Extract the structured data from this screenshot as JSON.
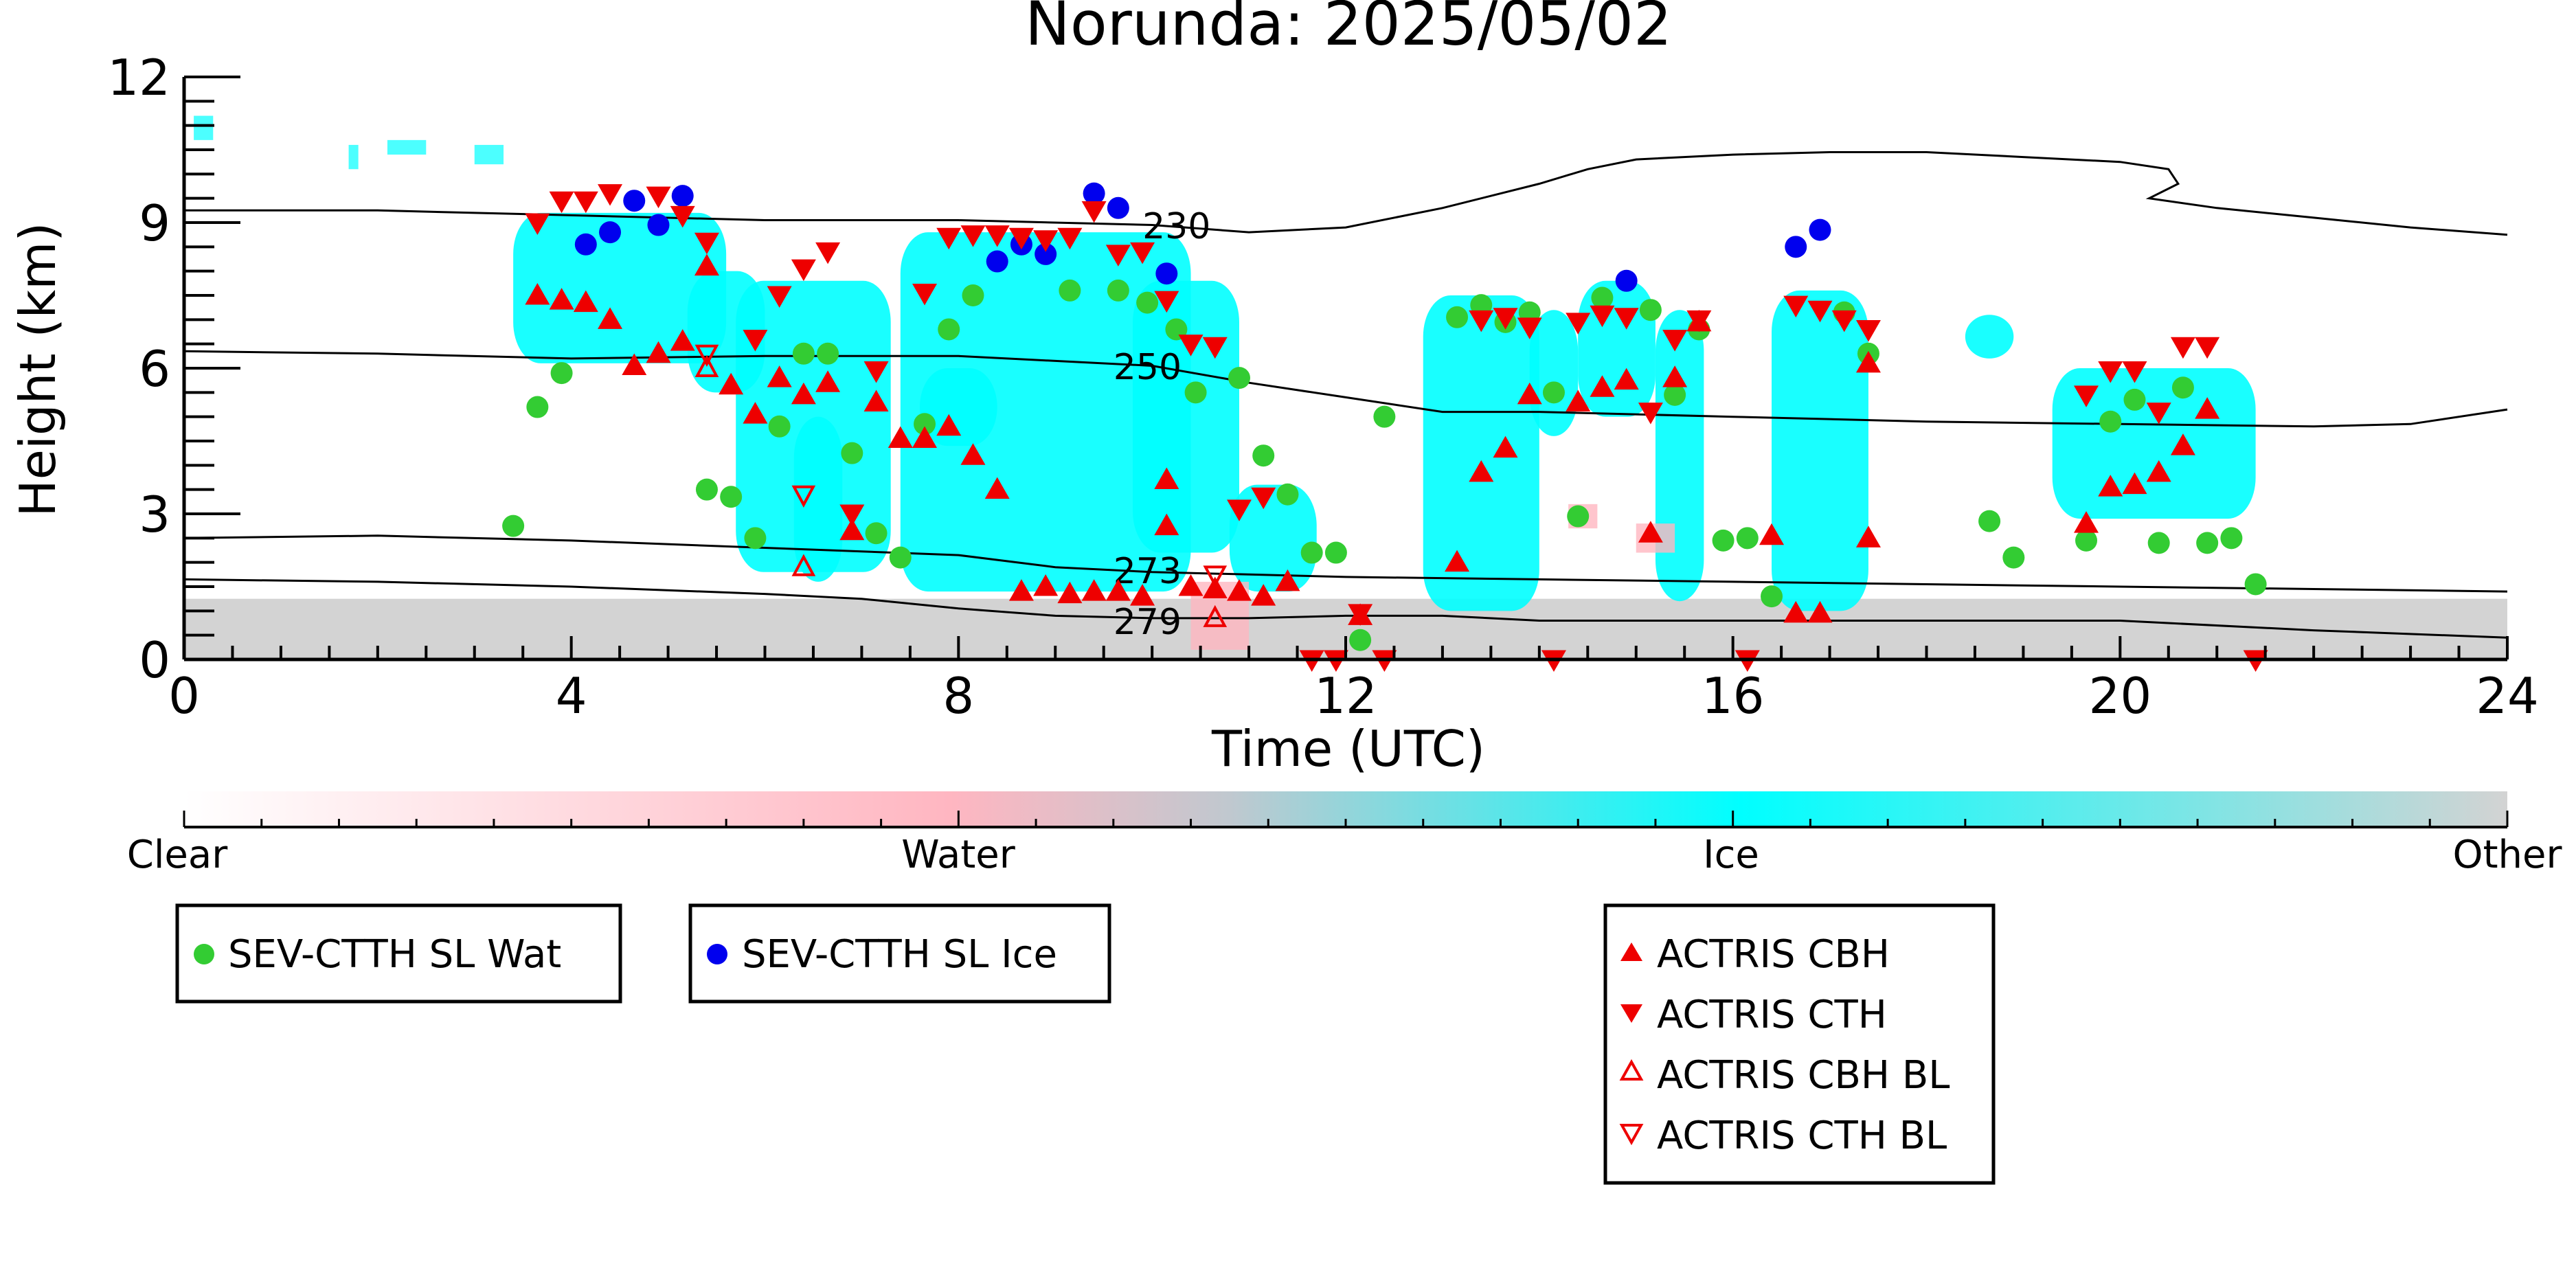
{
  "chart_data": {
    "type": "scatter",
    "title": "Norunda: 2025/05/02",
    "xlabel": "Time (UTC)",
    "ylabel": "Height (km)",
    "xlim": [
      0,
      24
    ],
    "ylim": [
      0,
      12
    ],
    "x_ticks": [
      "0",
      "4",
      "8",
      "12",
      "16",
      "20",
      "24"
    ],
    "y_ticks": [
      "0",
      "3",
      "6",
      "9",
      "12"
    ],
    "grid": false,
    "colorbar": {
      "labels": [
        "Clear",
        "Water",
        "Ice",
        "Other"
      ],
      "colors": [
        "#ffffff",
        "#ffb6c1",
        "#00ffff",
        "#d3d3d3"
      ]
    },
    "legend": {
      "placement": "below",
      "entries": [
        {
          "label": "SEV-CTTH SL Wat",
          "color": "#33cc33",
          "marker": "circle"
        },
        {
          "label": "SEV-CTTH SL Ice",
          "color": "#0000ee",
          "marker": "circle"
        },
        {
          "label": "ACTRIS CBH",
          "color": "#ee0000",
          "marker": "triangle-up"
        },
        {
          "label": "ACTRIS CTH",
          "color": "#ee0000",
          "marker": "triangle-down"
        },
        {
          "label": "ACTRIS CBH BL",
          "color": "#ee0000",
          "marker": "triangle-up-open"
        },
        {
          "label": "ACTRIS CTH BL",
          "color": "#ee0000",
          "marker": "triangle-down-open"
        }
      ]
    },
    "contours": [
      {
        "label": "230",
        "label_x": 9.9,
        "label_y": 8.9,
        "points": [
          [
            0,
            9.25
          ],
          [
            2,
            9.25
          ],
          [
            4,
            9.15
          ],
          [
            6,
            9.05
          ],
          [
            8,
            9.05
          ],
          [
            10,
            8.95
          ],
          [
            11,
            8.8
          ],
          [
            12,
            8.9
          ],
          [
            13,
            9.3
          ],
          [
            14,
            9.8
          ],
          [
            14.5,
            10.1
          ],
          [
            15,
            10.3
          ],
          [
            16,
            10.4
          ],
          [
            17,
            10.45
          ],
          [
            18,
            10.45
          ],
          [
            19,
            10.35
          ],
          [
            20,
            10.25
          ],
          [
            20.5,
            10.1
          ],
          [
            20.6,
            9.8
          ],
          [
            20.3,
            9.5
          ],
          [
            21,
            9.3
          ],
          [
            22,
            9.1
          ],
          [
            23,
            8.9
          ],
          [
            24,
            8.75
          ]
        ]
      },
      {
        "label": "250",
        "label_x": 9.6,
        "label_y": 6.0,
        "points": [
          [
            0,
            6.35
          ],
          [
            2,
            6.3
          ],
          [
            4,
            6.2
          ],
          [
            6,
            6.25
          ],
          [
            8,
            6.25
          ],
          [
            9,
            6.15
          ],
          [
            10,
            6.05
          ],
          [
            11,
            5.7
          ],
          [
            12,
            5.4
          ],
          [
            13,
            5.1
          ],
          [
            14,
            5.1
          ],
          [
            16,
            5.0
          ],
          [
            18,
            4.9
          ],
          [
            20,
            4.85
          ],
          [
            22,
            4.8
          ],
          [
            23,
            4.85
          ],
          [
            24,
            5.15
          ]
        ]
      },
      {
        "label": "273",
        "label_x": 9.6,
        "label_y": 1.8,
        "points": [
          [
            0,
            2.5
          ],
          [
            2,
            2.55
          ],
          [
            4,
            2.45
          ],
          [
            6,
            2.3
          ],
          [
            8,
            2.15
          ],
          [
            9,
            1.9
          ],
          [
            10,
            1.8
          ],
          [
            11,
            1.75
          ],
          [
            12,
            1.7
          ],
          [
            14,
            1.65
          ],
          [
            16,
            1.6
          ],
          [
            18,
            1.55
          ],
          [
            20,
            1.5
          ],
          [
            22,
            1.45
          ],
          [
            24,
            1.4
          ]
        ]
      },
      {
        "label": "279",
        "label_x": 9.6,
        "label_y": 0.75,
        "points": [
          [
            0,
            1.65
          ],
          [
            2,
            1.6
          ],
          [
            4,
            1.5
          ],
          [
            6,
            1.35
          ],
          [
            7,
            1.25
          ],
          [
            8,
            1.05
          ],
          [
            9,
            0.9
          ],
          [
            10,
            0.85
          ],
          [
            11,
            0.85
          ],
          [
            12,
            0.9
          ],
          [
            13,
            0.9
          ],
          [
            14,
            0.8
          ],
          [
            16,
            0.8
          ],
          [
            18,
            0.8
          ],
          [
            20,
            0.8
          ],
          [
            22,
            0.6
          ],
          [
            24,
            0.45
          ]
        ]
      }
    ],
    "series": [
      {
        "name": "SEV-CTTH SL Wat",
        "marker": "circle",
        "color": "#33cc33",
        "points": [
          [
            3.4,
            2.75
          ],
          [
            3.65,
            5.2
          ],
          [
            3.9,
            5.9
          ],
          [
            5.4,
            3.5
          ],
          [
            5.65,
            3.35
          ],
          [
            5.9,
            2.5
          ],
          [
            6.15,
            4.8
          ],
          [
            6.4,
            6.3
          ],
          [
            6.65,
            6.3
          ],
          [
            6.9,
            4.25
          ],
          [
            7.15,
            2.6
          ],
          [
            7.4,
            2.1
          ],
          [
            7.65,
            4.85
          ],
          [
            7.9,
            6.8
          ],
          [
            8.15,
            7.5
          ],
          [
            9.15,
            7.6
          ],
          [
            9.65,
            7.6
          ],
          [
            9.95,
            7.35
          ],
          [
            10.25,
            6.8
          ],
          [
            10.45,
            5.5
          ],
          [
            10.9,
            5.8
          ],
          [
            11.15,
            4.2
          ],
          [
            11.4,
            3.4
          ],
          [
            11.65,
            2.2
          ],
          [
            11.9,
            2.2
          ],
          [
            12.15,
            0.4
          ],
          [
            12.4,
            5.0
          ],
          [
            13.15,
            7.05
          ],
          [
            13.4,
            7.3
          ],
          [
            13.65,
            6.95
          ],
          [
            13.9,
            7.15
          ],
          [
            14.15,
            5.5
          ],
          [
            14.4,
            2.95
          ],
          [
            14.65,
            7.45
          ],
          [
            15.15,
            7.2
          ],
          [
            15.4,
            5.45
          ],
          [
            15.65,
            6.8
          ],
          [
            15.9,
            2.45
          ],
          [
            16.15,
            2.5
          ],
          [
            16.4,
            1.3
          ],
          [
            17.15,
            7.15
          ],
          [
            17.4,
            6.3
          ],
          [
            18.65,
            2.85
          ],
          [
            18.9,
            2.1
          ],
          [
            19.65,
            2.45
          ],
          [
            19.9,
            4.9
          ],
          [
            20.15,
            5.35
          ],
          [
            20.4,
            2.4
          ],
          [
            20.65,
            5.6
          ],
          [
            20.9,
            2.4
          ],
          [
            21.15,
            2.5
          ],
          [
            21.4,
            1.55
          ]
        ]
      },
      {
        "name": "SEV-CTTH SL Ice",
        "marker": "circle",
        "color": "#0000ee",
        "points": [
          [
            4.15,
            8.55
          ],
          [
            4.4,
            8.8
          ],
          [
            4.65,
            9.45
          ],
          [
            4.9,
            8.95
          ],
          [
            5.15,
            9.55
          ],
          [
            8.4,
            8.2
          ],
          [
            8.65,
            8.55
          ],
          [
            8.9,
            8.35
          ],
          [
            9.4,
            9.6
          ],
          [
            9.65,
            9.3
          ],
          [
            10.15,
            7.95
          ],
          [
            14.9,
            7.8
          ],
          [
            16.65,
            8.5
          ],
          [
            16.9,
            8.85
          ]
        ]
      },
      {
        "name": "ACTRIS CBH",
        "marker": "triangle-up",
        "color": "#ee0000",
        "points": [
          [
            3.65,
            7.5
          ],
          [
            3.9,
            7.4
          ],
          [
            4.15,
            7.35
          ],
          [
            4.4,
            7.0
          ],
          [
            4.65,
            6.05
          ],
          [
            4.9,
            6.3
          ],
          [
            5.15,
            6.55
          ],
          [
            5.4,
            8.1
          ],
          [
            5.65,
            5.65
          ],
          [
            5.9,
            5.05
          ],
          [
            6.15,
            5.8
          ],
          [
            6.4,
            5.45
          ],
          [
            6.65,
            5.7
          ],
          [
            6.9,
            2.65
          ],
          [
            7.15,
            5.3
          ],
          [
            7.4,
            4.55
          ],
          [
            7.65,
            4.55
          ],
          [
            7.9,
            4.8
          ],
          [
            8.15,
            4.2
          ],
          [
            8.4,
            3.5
          ],
          [
            8.65,
            1.4
          ],
          [
            8.9,
            1.5
          ],
          [
            9.15,
            1.35
          ],
          [
            9.4,
            1.4
          ],
          [
            9.65,
            1.4
          ],
          [
            9.9,
            1.3
          ],
          [
            10.15,
            2.75
          ],
          [
            10.4,
            1.5
          ],
          [
            10.65,
            1.45
          ],
          [
            10.9,
            1.4
          ],
          [
            11.15,
            1.3
          ],
          [
            11.4,
            1.6
          ],
          [
            10.15,
            3.7
          ],
          [
            12.15,
            0.9
          ],
          [
            13.15,
            2.0
          ],
          [
            13.4,
            3.85
          ],
          [
            13.65,
            4.35
          ],
          [
            13.9,
            5.45
          ],
          [
            14.4,
            5.3
          ],
          [
            14.65,
            5.6
          ],
          [
            14.9,
            5.75
          ],
          [
            15.15,
            2.6
          ],
          [
            15.4,
            5.8
          ],
          [
            15.65,
            6.95
          ],
          [
            16.4,
            2.55
          ],
          [
            16.65,
            0.95
          ],
          [
            16.9,
            0.95
          ],
          [
            17.4,
            2.5
          ],
          [
            17.4,
            6.1
          ],
          [
            19.65,
            2.8
          ],
          [
            19.9,
            3.55
          ],
          [
            20.15,
            3.6
          ],
          [
            20.4,
            3.85
          ],
          [
            20.65,
            4.4
          ],
          [
            20.9,
            5.15
          ]
        ]
      },
      {
        "name": "ACTRIS CTH",
        "marker": "triangle-down",
        "color": "#ee0000",
        "points": [
          [
            3.65,
            9.0
          ],
          [
            3.9,
            9.45
          ],
          [
            4.15,
            9.45
          ],
          [
            4.4,
            9.6
          ],
          [
            4.9,
            9.55
          ],
          [
            5.15,
            9.15
          ],
          [
            5.4,
            8.6
          ],
          [
            5.9,
            6.6
          ],
          [
            6.15,
            7.5
          ],
          [
            6.4,
            8.05
          ],
          [
            6.65,
            8.4
          ],
          [
            6.9,
            3.0
          ],
          [
            7.15,
            5.95
          ],
          [
            7.65,
            7.55
          ],
          [
            7.9,
            8.7
          ],
          [
            8.15,
            8.75
          ],
          [
            8.4,
            8.75
          ],
          [
            8.65,
            8.7
          ],
          [
            8.9,
            8.65
          ],
          [
            9.15,
            8.7
          ],
          [
            9.4,
            9.25
          ],
          [
            9.65,
            8.35
          ],
          [
            9.9,
            8.4
          ],
          [
            10.15,
            7.4
          ],
          [
            10.4,
            6.5
          ],
          [
            10.65,
            6.45
          ],
          [
            10.9,
            3.1
          ],
          [
            11.15,
            3.35
          ],
          [
            11.65,
            0.0
          ],
          [
            11.9,
            0.0
          ],
          [
            12.15,
            0.95
          ],
          [
            12.4,
            0.0
          ],
          [
            13.4,
            7.0
          ],
          [
            13.65,
            7.05
          ],
          [
            13.9,
            6.85
          ],
          [
            14.15,
            0.0
          ],
          [
            14.4,
            6.95
          ],
          [
            14.65,
            7.1
          ],
          [
            14.9,
            7.05
          ],
          [
            15.15,
            5.1
          ],
          [
            15.4,
            6.6
          ],
          [
            15.65,
            7.0
          ],
          [
            16.15,
            0.0
          ],
          [
            16.65,
            7.3
          ],
          [
            16.9,
            7.2
          ],
          [
            17.15,
            7.0
          ],
          [
            17.4,
            6.8
          ],
          [
            19.65,
            5.45
          ],
          [
            19.9,
            5.95
          ],
          [
            20.15,
            5.95
          ],
          [
            20.4,
            5.1
          ],
          [
            20.65,
            6.45
          ],
          [
            20.9,
            6.45
          ],
          [
            21.4,
            0.0
          ]
        ]
      },
      {
        "name": "ACTRIS CBH BL",
        "marker": "triangle-up-open",
        "color": "#ee0000",
        "points": [
          [
            5.4,
            6.0
          ],
          [
            6.4,
            1.9
          ],
          [
            10.65,
            0.85
          ]
        ]
      },
      {
        "name": "ACTRIS CTH BL",
        "marker": "triangle-down-open",
        "color": "#ee0000",
        "points": [
          [
            5.4,
            6.3
          ],
          [
            6.4,
            3.4
          ],
          [
            10.65,
            1.75
          ]
        ]
      }
    ]
  }
}
